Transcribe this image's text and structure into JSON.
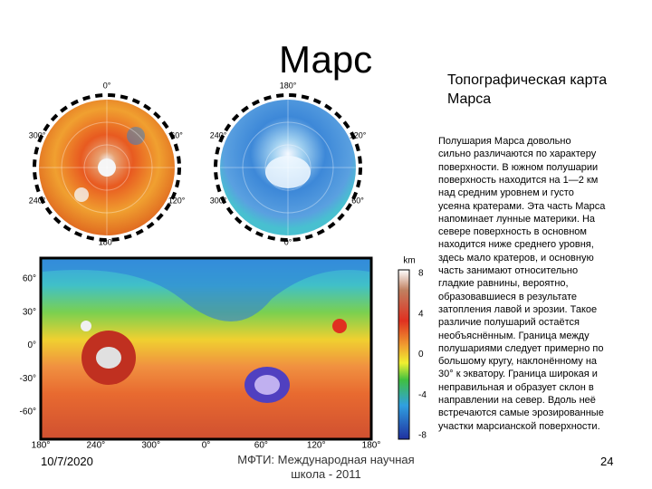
{
  "header": {
    "title": "Марс",
    "subtitle_lines": [
      "Топографическая карта",
      "Марса"
    ]
  },
  "body_lines": [
    "Полушария Марса довольно",
    "сильно различаются по характеру",
    "поверхности. В южном полушарии",
    "поверхность находится на 1—2 км",
    "над средним уровнем и густо",
    "усеяна кратерами. Эта часть Марса",
    "напоминает лунные материки. На",
    "севере поверхность в основном",
    "находится ниже среднего уровня,",
    "здесь мало кратеров, и основную",
    "часть занимают относительно",
    "гладкие равнины, вероятно,",
    "образовавшиеся в результате",
    "затопления лавой и эрозии. Такое",
    "различие полушарий остаётся",
    "необъяснённым. Граница между",
    "полушариями следует примерно по",
    "большому кругу, наклонённому на",
    "30° к экватору. Граница широкая и",
    "неправильная и образует склон в",
    "направлении на север. Вдоль неё",
    "встречаются самые эрозированные",
    "участки марсианской поверхности."
  ],
  "north_disc_labels": [
    "0°",
    "300°",
    "60°",
    "240°",
    "120°",
    "180°"
  ],
  "south_disc_labels": [
    "180°",
    "240°",
    "120°",
    "300°",
    "60°",
    "0°"
  ],
  "map": {
    "lat_labels": [
      "60°",
      "30°",
      "0°",
      "-30°",
      "-60°"
    ],
    "lon_labels": [
      "180°",
      "240°",
      "300°",
      "0°",
      "60°",
      "120°",
      "180°"
    ],
    "scale_unit": "km",
    "scale_labels": [
      "8",
      "4",
      "0",
      "-4",
      "-8"
    ]
  },
  "footer": {
    "date": "10/7/2020",
    "org_lines": [
      "МФТИ: Международная научная",
      "школа - 2011"
    ],
    "page": "24"
  }
}
